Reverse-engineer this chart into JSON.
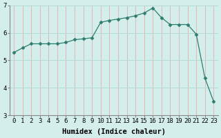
{
  "x": [
    0,
    1,
    2,
    3,
    4,
    5,
    6,
    7,
    8,
    9,
    10,
    11,
    12,
    13,
    14,
    15,
    16,
    17,
    18,
    19,
    20,
    21,
    22,
    23
  ],
  "y": [
    5.28,
    5.45,
    5.6,
    5.6,
    5.6,
    5.6,
    5.65,
    5.75,
    5.78,
    5.82,
    6.38,
    6.45,
    6.5,
    6.55,
    6.62,
    6.72,
    6.9,
    6.55,
    6.3,
    6.3,
    6.3,
    5.95,
    4.35,
    3.5
  ],
  "line_color": "#2e7d6e",
  "marker": "D",
  "marker_size": 2.5,
  "bg_color": "#d4eeeb",
  "grid_color_h": "#b8d8d4",
  "grid_color_v": "#e0b8b8",
  "xlabel": "Humidex (Indice chaleur)",
  "ylim": [
    3,
    7
  ],
  "xlim": [
    -0.5,
    23.5
  ],
  "yticks": [
    3,
    4,
    5,
    6,
    7
  ],
  "xticks": [
    0,
    1,
    2,
    3,
    4,
    5,
    6,
    7,
    8,
    9,
    10,
    11,
    12,
    13,
    14,
    15,
    16,
    17,
    18,
    19,
    20,
    21,
    22,
    23
  ],
  "xlabel_fontsize": 7.5,
  "tick_fontsize": 6.5
}
